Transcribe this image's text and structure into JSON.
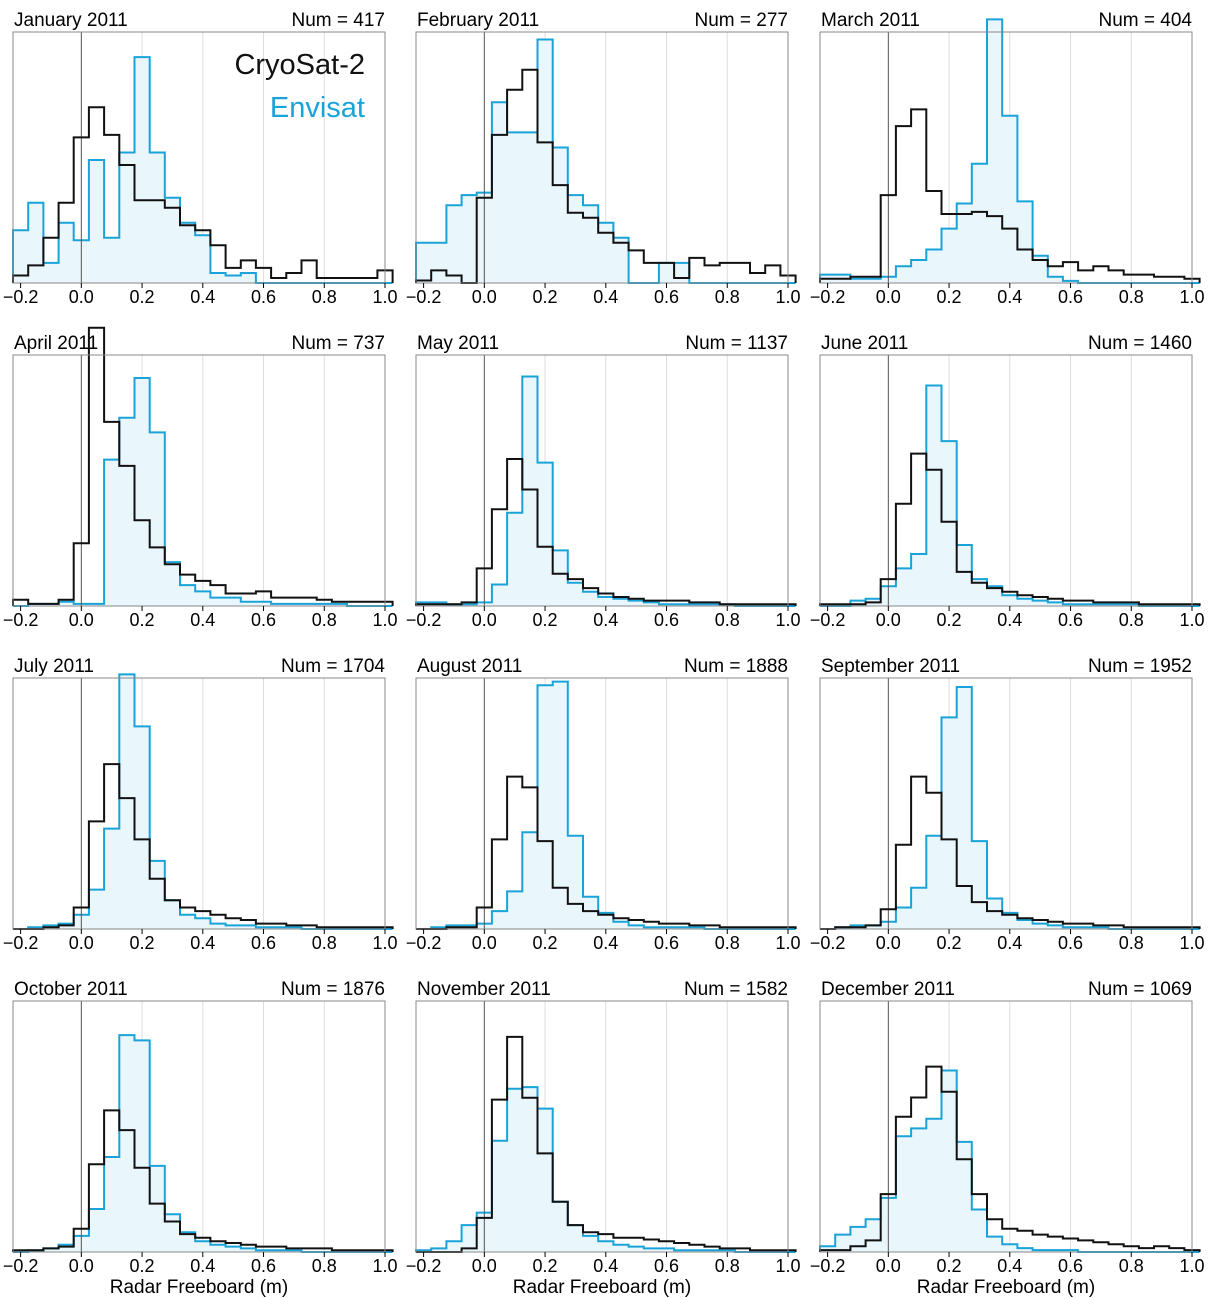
{
  "colors": {
    "cryosat": "#111111",
    "envisat": "#1aa3d8",
    "envisat_fill": "#e9f6fc",
    "grid": "#dddddd",
    "frame": "#888888"
  },
  "chart_data": {
    "type": "histogram-step",
    "layout": "4x3 small multiples",
    "xlabel": "Radar Freeboard (m)",
    "xlim": [
      -0.225,
      1.0
    ],
    "xticks": [
      -0.2,
      0.0,
      0.2,
      0.4,
      0.6,
      0.8,
      1.0
    ],
    "xtick_labels": [
      "−0.2",
      "0.0",
      "0.2",
      "0.4",
      "0.6",
      "0.8",
      "1.0"
    ],
    "bin_width": 0.05,
    "bin_start": -0.225,
    "series_names": [
      "CryoSat-2",
      "Envisat"
    ],
    "legend": {
      "entries": [
        "CryoSat-2",
        "Envisat"
      ],
      "placement": "top-right of first panel"
    },
    "panels": [
      {
        "title": "January 2011",
        "num_label": "Num = 417",
        "ymax": 0.1,
        "cryosat": [
          0.003,
          0.007,
          0.018,
          0.032,
          0.058,
          0.07,
          0.059,
          0.047,
          0.033,
          0.033,
          0.03,
          0.023,
          0.021,
          0.015,
          0.006,
          0.009,
          0.006,
          0.002,
          0.004,
          0.009,
          0.002,
          0.002,
          0.002,
          0.002,
          0.005
        ],
        "envisat": [
          0.021,
          0.032,
          0.008,
          0.024,
          0.017,
          0.049,
          0.018,
          0.052,
          0.09,
          0.052,
          0.034,
          0.024,
          0.019,
          0.004,
          0.003,
          0.004,
          0.0,
          0.0,
          0.0,
          0.0,
          0.0,
          0.0,
          0.0,
          0.0,
          0.0
        ]
      },
      {
        "title": "February 2011",
        "num_label": "Num = 277",
        "ymax": 0.1,
        "cryosat": [
          0.001,
          0.005,
          0.003,
          0.0,
          0.034,
          0.059,
          0.077,
          0.085,
          0.056,
          0.039,
          0.028,
          0.026,
          0.02,
          0.016,
          0.013,
          0.008,
          0.008,
          0.002,
          0.01,
          0.007,
          0.008,
          0.008,
          0.004,
          0.007,
          0.003
        ],
        "envisat": [
          0.016,
          0.016,
          0.031,
          0.035,
          0.036,
          0.072,
          0.06,
          0.06,
          0.097,
          0.054,
          0.035,
          0.031,
          0.024,
          0.018,
          0.0,
          0.0,
          0.008,
          0.008,
          0.0,
          0.0,
          0.0,
          0.0,
          0.0,
          0.0,
          0.0
        ]
      },
      {
        "title": "March 2011",
        "num_label": "Num = 404",
        "ymax": 0.12,
        "cryosat": [
          0.002,
          0.002,
          0.003,
          0.003,
          0.042,
          0.075,
          0.083,
          0.044,
          0.033,
          0.033,
          0.034,
          0.032,
          0.026,
          0.016,
          0.011,
          0.008,
          0.01,
          0.006,
          0.008,
          0.006,
          0.004,
          0.004,
          0.003,
          0.003,
          0.002
        ],
        "envisat": [
          0.004,
          0.004,
          0.002,
          0.002,
          0.003,
          0.008,
          0.011,
          0.016,
          0.026,
          0.038,
          0.057,
          0.126,
          0.08,
          0.039,
          0.013,
          0.003,
          0.001,
          0.0,
          0.0,
          0.0,
          0.0,
          0.0,
          0.0,
          0.0,
          0.0
        ]
      },
      {
        "title": "April 2011",
        "num_label": "Num = 737",
        "ymax": 0.12,
        "cryosat": [
          0.003,
          0.001,
          0.001,
          0.003,
          0.03,
          0.133,
          0.088,
          0.067,
          0.041,
          0.028,
          0.02,
          0.015,
          0.012,
          0.01,
          0.006,
          0.006,
          0.007,
          0.004,
          0.004,
          0.004,
          0.003,
          0.002,
          0.002,
          0.002,
          0.002
        ],
        "envisat": [
          0.0,
          0.001,
          0.001,
          0.002,
          0.001,
          0.001,
          0.07,
          0.09,
          0.109,
          0.083,
          0.021,
          0.01,
          0.007,
          0.004,
          0.004,
          0.002,
          0.002,
          0.001,
          0.001,
          0.001,
          0.001,
          0.001,
          0.0,
          0.0,
          0.0
        ]
      },
      {
        "title": "May 2011",
        "num_label": "Num = 1137",
        "ymax": 0.14,
        "cryosat": [
          0.001,
          0.001,
          0.001,
          0.002,
          0.021,
          0.054,
          0.082,
          0.065,
          0.033,
          0.018,
          0.015,
          0.01,
          0.007,
          0.005,
          0.004,
          0.003,
          0.003,
          0.003,
          0.002,
          0.002,
          0.001,
          0.001,
          0.001,
          0.001,
          0.001
        ],
        "envisat": [
          0.002,
          0.002,
          0.001,
          0.001,
          0.002,
          0.012,
          0.052,
          0.128,
          0.08,
          0.031,
          0.013,
          0.008,
          0.005,
          0.004,
          0.003,
          0.002,
          0.001,
          0.001,
          0.001,
          0.001,
          0.001,
          0.0,
          0.0,
          0.0,
          0.0
        ]
      },
      {
        "title": "June 2011",
        "num_label": "Num = 1460",
        "ymax": 0.14,
        "cryosat": [
          0.001,
          0.001,
          0.001,
          0.002,
          0.015,
          0.057,
          0.085,
          0.076,
          0.047,
          0.019,
          0.013,
          0.01,
          0.008,
          0.006,
          0.005,
          0.004,
          0.003,
          0.003,
          0.002,
          0.002,
          0.002,
          0.001,
          0.001,
          0.001,
          0.001
        ],
        "envisat": [
          0.0,
          0.0,
          0.003,
          0.004,
          0.011,
          0.021,
          0.029,
          0.123,
          0.092,
          0.034,
          0.015,
          0.011,
          0.006,
          0.004,
          0.003,
          0.002,
          0.001,
          0.001,
          0.001,
          0.001,
          0.001,
          0.0,
          0.0,
          0.0,
          0.0
        ]
      },
      {
        "title": "July 2011",
        "num_label": "Num = 1704",
        "ymax": 0.14,
        "cryosat": [
          0.0,
          0.0,
          0.001,
          0.002,
          0.012,
          0.06,
          0.092,
          0.073,
          0.05,
          0.028,
          0.016,
          0.012,
          0.01,
          0.008,
          0.006,
          0.005,
          0.003,
          0.003,
          0.002,
          0.002,
          0.001,
          0.001,
          0.001,
          0.001,
          0.001
        ],
        "envisat": [
          0.0,
          0.001,
          0.002,
          0.003,
          0.008,
          0.022,
          0.056,
          0.142,
          0.113,
          0.038,
          0.016,
          0.008,
          0.006,
          0.003,
          0.002,
          0.002,
          0.001,
          0.001,
          0.001,
          0.0,
          0.0,
          0.0,
          0.0,
          0.0,
          0.0
        ]
      },
      {
        "title": "August 2011",
        "num_label": "Num = 1888",
        "ymax": 0.14,
        "cryosat": [
          0.0,
          0.0,
          0.001,
          0.001,
          0.012,
          0.05,
          0.085,
          0.079,
          0.049,
          0.023,
          0.014,
          0.01,
          0.008,
          0.006,
          0.005,
          0.004,
          0.003,
          0.003,
          0.002,
          0.002,
          0.001,
          0.001,
          0.001,
          0.001,
          0.001
        ],
        "envisat": [
          0.0,
          0.001,
          0.002,
          0.002,
          0.003,
          0.01,
          0.021,
          0.054,
          0.136,
          0.138,
          0.052,
          0.018,
          0.009,
          0.004,
          0.002,
          0.001,
          0.001,
          0.001,
          0.001,
          0.0,
          0.0,
          0.0,
          0.0,
          0.0,
          0.0
        ]
      },
      {
        "title": "September 2011",
        "num_label": "Num = 1952",
        "ymax": 0.14,
        "cryosat": [
          0.0,
          0.001,
          0.001,
          0.002,
          0.011,
          0.047,
          0.085,
          0.076,
          0.05,
          0.024,
          0.015,
          0.01,
          0.008,
          0.006,
          0.005,
          0.004,
          0.003,
          0.003,
          0.002,
          0.002,
          0.001,
          0.001,
          0.001,
          0.001,
          0.001
        ],
        "envisat": [
          0.0,
          0.001,
          0.002,
          0.002,
          0.004,
          0.012,
          0.023,
          0.052,
          0.118,
          0.135,
          0.049,
          0.017,
          0.009,
          0.005,
          0.003,
          0.002,
          0.001,
          0.001,
          0.001,
          0.0,
          0.0,
          0.0,
          0.0,
          0.0,
          0.0
        ]
      },
      {
        "title": "October 2011",
        "num_label": "Num = 1876",
        "ymax": 0.14,
        "cryosat": [
          0.001,
          0.001,
          0.002,
          0.003,
          0.013,
          0.049,
          0.079,
          0.068,
          0.047,
          0.027,
          0.017,
          0.01,
          0.008,
          0.006,
          0.005,
          0.004,
          0.003,
          0.003,
          0.002,
          0.002,
          0.002,
          0.001,
          0.001,
          0.001,
          0.001
        ],
        "envisat": [
          0.0,
          0.001,
          0.002,
          0.004,
          0.009,
          0.024,
          0.053,
          0.121,
          0.118,
          0.048,
          0.021,
          0.011,
          0.006,
          0.004,
          0.003,
          0.002,
          0.001,
          0.001,
          0.001,
          0.0,
          0.0,
          0.0,
          0.0,
          0.0,
          0.0
        ]
      },
      {
        "title": "November 2011",
        "num_label": "Num = 1582",
        "ymax": 0.14,
        "cryosat": [
          0.0,
          0.0,
          0.0,
          0.002,
          0.019,
          0.085,
          0.12,
          0.086,
          0.055,
          0.028,
          0.015,
          0.011,
          0.01,
          0.008,
          0.008,
          0.007,
          0.006,
          0.005,
          0.004,
          0.003,
          0.002,
          0.002,
          0.001,
          0.001,
          0.001
        ],
        "envisat": [
          0.001,
          0.002,
          0.006,
          0.015,
          0.022,
          0.062,
          0.091,
          0.092,
          0.08,
          0.028,
          0.015,
          0.009,
          0.006,
          0.004,
          0.003,
          0.002,
          0.002,
          0.001,
          0.001,
          0.001,
          0.001,
          0.0,
          0.0,
          0.0,
          0.0
        ]
      },
      {
        "title": "December 2011",
        "num_label": "Num = 1069",
        "ymax": 0.13,
        "cryosat": [
          0.001,
          0.001,
          0.003,
          0.006,
          0.03,
          0.07,
          0.08,
          0.096,
          0.083,
          0.048,
          0.03,
          0.017,
          0.012,
          0.011,
          0.009,
          0.008,
          0.007,
          0.006,
          0.005,
          0.004,
          0.003,
          0.002,
          0.003,
          0.002,
          0.001
        ],
        "envisat": [
          0.003,
          0.009,
          0.013,
          0.017,
          0.028,
          0.06,
          0.064,
          0.069,
          0.094,
          0.057,
          0.022,
          0.008,
          0.004,
          0.002,
          0.001,
          0.001,
          0.001,
          0.0,
          0.0,
          0.0,
          0.0,
          0.0,
          0.0,
          0.0,
          0.0
        ]
      }
    ]
  }
}
